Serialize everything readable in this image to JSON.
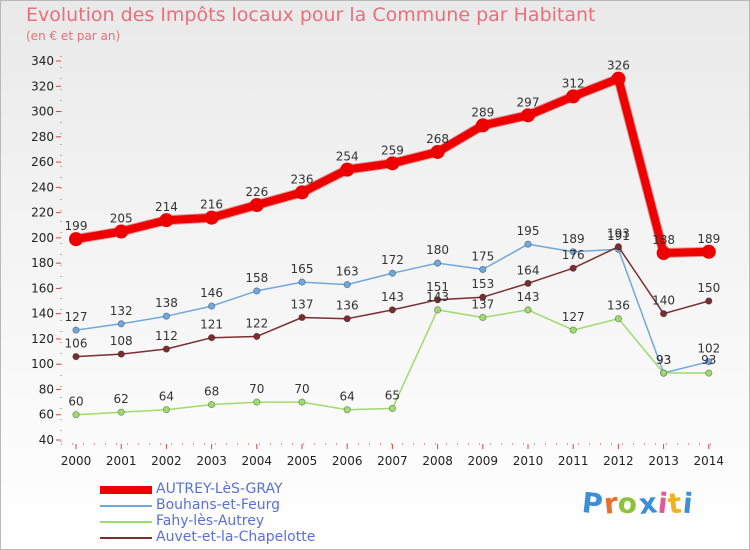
{
  "header": {
    "title": "Evolution des Impôts locaux pour la Commune par Habitant",
    "subtitle": "(en € et par an)"
  },
  "logo": {
    "text": "Proxiti",
    "colors": [
      "#3a8fd6",
      "#e8702a",
      "#8fc23a",
      "#3a8fd6",
      "#e05a9a",
      "#f2b21c",
      "#3a8fd6"
    ]
  },
  "chart_data": {
    "type": "line",
    "x": [
      "2000",
      "2001",
      "2002",
      "2003",
      "2004",
      "2005",
      "2006",
      "2007",
      "2008",
      "2009",
      "2010",
      "2011",
      "2012",
      "2013",
      "2014"
    ],
    "yticks": [
      40,
      60,
      80,
      100,
      120,
      140,
      160,
      180,
      200,
      220,
      240,
      260,
      280,
      300,
      320,
      340
    ],
    "ylim": [
      40,
      340
    ],
    "grid": false,
    "legend_position": "bottom-left",
    "series": [
      {
        "name": "AUTREY-LèS-GRAY",
        "color": "#ee0000",
        "values": [
          199,
          205,
          214,
          216,
          226,
          236,
          254,
          259,
          268,
          289,
          297,
          312,
          326,
          188,
          189
        ],
        "labels": [
          "199",
          "205",
          "214",
          "216",
          "226",
          "236",
          "254",
          "259",
          "268",
          "289",
          "297",
          "312",
          "326",
          "188",
          "189"
        ]
      },
      {
        "name": "Bouhans-et-Feurg",
        "color": "#6fa8dc",
        "values": [
          127,
          132,
          138,
          146,
          158,
          165,
          163,
          172,
          180,
          175,
          195,
          189,
          191,
          93,
          102
        ],
        "labels": [
          "127",
          "132",
          "138",
          "146",
          "158",
          "165",
          "163",
          "172",
          "180",
          "175",
          "195",
          "189",
          "191",
          "93",
          "102"
        ]
      },
      {
        "name": "Fahy-lès-Autrey",
        "color": "#9edb6e",
        "values": [
          60,
          62,
          64,
          68,
          70,
          70,
          64,
          65,
          143,
          137,
          143,
          127,
          136,
          93,
          93
        ],
        "labels": [
          "60",
          "62",
          "64",
          "68",
          "70",
          "70",
          "64",
          "65",
          "143",
          "137",
          "143",
          "127",
          "136",
          "93",
          "93"
        ]
      },
      {
        "name": "Auvet-et-la-Chapelotte",
        "color": "#7a2e2e",
        "values": [
          106,
          108,
          112,
          121,
          122,
          137,
          136,
          143,
          151,
          153,
          164,
          176,
          193,
          140,
          150
        ],
        "labels": [
          "106",
          "108",
          "112",
          "121",
          "122",
          "137",
          "136",
          "143",
          "151",
          "153",
          "164",
          "176",
          "193",
          "140",
          "150"
        ]
      }
    ]
  }
}
